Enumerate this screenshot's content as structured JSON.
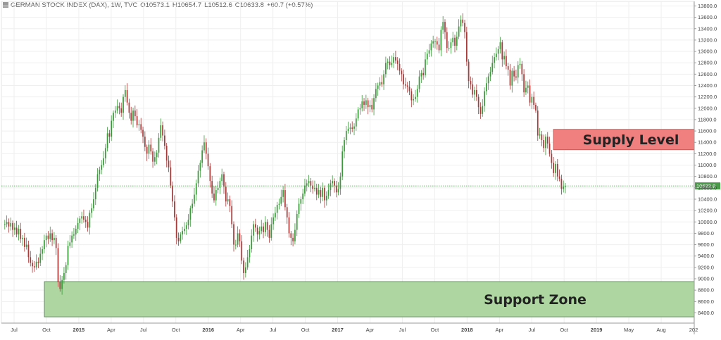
{
  "header": {
    "symbol": "GERMAN STOCK INDEX (DAX), 1W, TVC",
    "open": "O10573.1",
    "high": "H10654.7",
    "low": "L10512.6",
    "close": "C10633.8",
    "change": "+60.7 (+0.57%)"
  },
  "colors": {
    "up": "#3c9a3c",
    "down": "#a93a3a",
    "supply_fill": "#f08080",
    "support_fill": "#a9d49b",
    "price_line": "#3c9a3c"
  },
  "chart_data": {
    "type": "candlestick",
    "title": "GERMAN STOCK INDEX (DAX), 1W, TVC",
    "ylim": [
      8220,
      13880
    ],
    "y_ticks": [
      "13800.0",
      "13600.0",
      "13400.0",
      "13200.0",
      "13000.0",
      "12800.0",
      "12600.0",
      "12400.0",
      "12200.0",
      "12000.0",
      "11800.0",
      "11600.0",
      "11400.0",
      "11200.0",
      "11000.0",
      "10800.0",
      "10600.0",
      "10400.0",
      "10200.0",
      "10000.0",
      "9800.0",
      "9600.0",
      "9400.0",
      "9200.0",
      "9000.0",
      "8800.0",
      "8600.0",
      "8400.0"
    ],
    "x_ticks": [
      {
        "label": "Jul",
        "bold": false
      },
      {
        "label": "Oct",
        "bold": false
      },
      {
        "label": "2015",
        "bold": true
      },
      {
        "label": "Apr",
        "bold": false
      },
      {
        "label": "Jul",
        "bold": false
      },
      {
        "label": "Oct",
        "bold": false
      },
      {
        "label": "2016",
        "bold": true
      },
      {
        "label": "Apr",
        "bold": false
      },
      {
        "label": "Jul",
        "bold": false
      },
      {
        "label": "Oct",
        "bold": false
      },
      {
        "label": "2017",
        "bold": true
      },
      {
        "label": "Apr",
        "bold": false
      },
      {
        "label": "Jul",
        "bold": false
      },
      {
        "label": "Oct",
        "bold": false
      },
      {
        "label": "2018",
        "bold": true
      },
      {
        "label": "Apr",
        "bold": false
      },
      {
        "label": "Jul",
        "bold": false
      },
      {
        "label": "Oct",
        "bold": false
      },
      {
        "label": "2019",
        "bold": true
      },
      {
        "label": "May",
        "bold": false
      },
      {
        "label": "Aug",
        "bold": false
      },
      {
        "label": "202",
        "bold": false
      }
    ],
    "series": [
      {
        "values": [
          9960,
          9960,
          10000,
          9920,
          9980,
          9860,
          9900,
          9780,
          9880,
          9700,
          9720,
          9560,
          9600,
          9380,
          9280,
          9220,
          9200,
          9300,
          9280,
          9440,
          9520,
          9680,
          9760,
          9700,
          9800,
          9680,
          9720,
          9540,
          8940,
          8820,
          8980,
          9100,
          9240,
          9580,
          9640,
          9760,
          9780,
          9880,
          9980,
          10060,
          10100,
          10040,
          10000,
          9900,
          10160,
          10240,
          10400,
          10600,
          10840,
          10920,
          11000,
          11120,
          11300,
          11560,
          11500,
          11780,
          11920,
          11960,
          12040,
          12000,
          11920,
          12200,
          12320,
          12100,
          11920,
          11780,
          11960,
          11860,
          11700,
          11720,
          11620,
          11500,
          11320,
          11200,
          11360,
          11240,
          11060,
          11140,
          11220,
          11480,
          11700,
          11520,
          11340,
          11080,
          10960,
          10640,
          10360,
          10080,
          9720,
          9660,
          9780,
          9840,
          9880,
          9940,
          10040,
          10240,
          10320,
          10480,
          10680,
          10900,
          11040,
          11260,
          11400,
          11200,
          10980,
          10720,
          10500,
          10380,
          10560,
          10600,
          10720,
          10840,
          10620,
          10360,
          10400,
          10280,
          9960,
          9600,
          9600,
          9800,
          9660,
          9320,
          9100,
          9200,
          9380,
          9520,
          9760,
          9960,
          9900,
          9780,
          9840,
          9920,
          9820,
          10000,
          9860,
          9720,
          9960,
          10080,
          10160,
          10300,
          10320,
          10440,
          10560,
          10260,
          10080,
          9800,
          9720,
          9660,
          9860,
          10140,
          10320,
          10400,
          10500,
          10640,
          10680,
          10720,
          10640,
          10580,
          10600,
          10480,
          10560,
          10440,
          10600,
          10380,
          10460,
          10560,
          10680,
          10720,
          10640,
          10520,
          10580,
          10800,
          11240,
          11440,
          11600,
          11640,
          11660,
          11640,
          11680,
          11820,
          11980,
          12000,
          12120,
          12060,
          12140,
          12020,
          12060,
          11980,
          12180,
          12340,
          12400,
          12460,
          12420,
          12600,
          12800,
          12820,
          12760,
          12800,
          12900,
          12840,
          12780,
          12660,
          12600,
          12420,
          12400,
          12380,
          12300,
          12140,
          12160,
          12200,
          12340,
          12560,
          12620,
          12580,
          12860,
          12960,
          13020,
          13140,
          13180,
          13180,
          13120,
          13020,
          13380,
          13520,
          13340,
          13060,
          13060,
          13160,
          13240,
          13100,
          13260,
          13440,
          13560,
          13500,
          13340,
          12820,
          12480,
          12420,
          12240,
          12320,
          12200,
          12020,
          11900,
          12040,
          12300,
          12440,
          12560,
          12640,
          12800,
          12900,
          12960,
          13040,
          13160,
          12860,
          12920,
          12740,
          12680,
          12400,
          12660,
          12560,
          12540,
          12760,
          12780,
          12600,
          12280,
          12360,
          12400,
          12100,
          12200,
          12060,
          11960,
          11520,
          11540,
          11440,
          11300,
          11500,
          11380,
          11200,
          11040,
          10860,
          11020,
          10800,
          10760,
          10580,
          10620,
          10630
        ]
      }
    ],
    "annotations": [
      "Supply Level",
      "Support Zone"
    ],
    "supply_zone": [
      11270,
      11630
    ],
    "support_zone": [
      8330,
      8950
    ],
    "last_price_label": "10633.8",
    "last_price": 10633.8
  }
}
